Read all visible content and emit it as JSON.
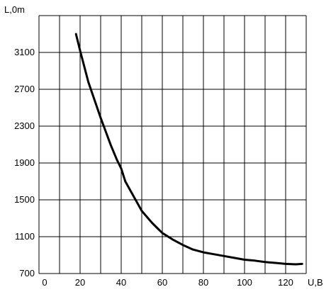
{
  "chart_data": {
    "type": "line",
    "title": "",
    "xlabel": "U,B",
    "ylabel": "L,0m",
    "xlim": [
      0,
      130
    ],
    "ylim": [
      700,
      3500
    ],
    "x_ticks": [
      0,
      20,
      40,
      60,
      80,
      100,
      120
    ],
    "y_ticks": [
      700,
      1100,
      1500,
      1900,
      2300,
      2700,
      3100
    ],
    "grid": true,
    "legend": "none",
    "series": [
      {
        "x": [
          18,
          20,
          22,
          24,
          26,
          28,
          30,
          32,
          35,
          38,
          40,
          42,
          45,
          48,
          50,
          55,
          60,
          65,
          70,
          75,
          80,
          85,
          90,
          95,
          100,
          105,
          110,
          115,
          120,
          125,
          128
        ],
        "y": [
          3300,
          3120,
          2950,
          2780,
          2650,
          2520,
          2390,
          2270,
          2090,
          1930,
          1840,
          1700,
          1580,
          1460,
          1380,
          1250,
          1140,
          1070,
          1010,
          960,
          930,
          910,
          890,
          870,
          850,
          840,
          825,
          815,
          805,
          800,
          805
        ]
      }
    ],
    "colors": {
      "line": "#000000",
      "grid": "#000000",
      "background": "#ffffff"
    }
  }
}
